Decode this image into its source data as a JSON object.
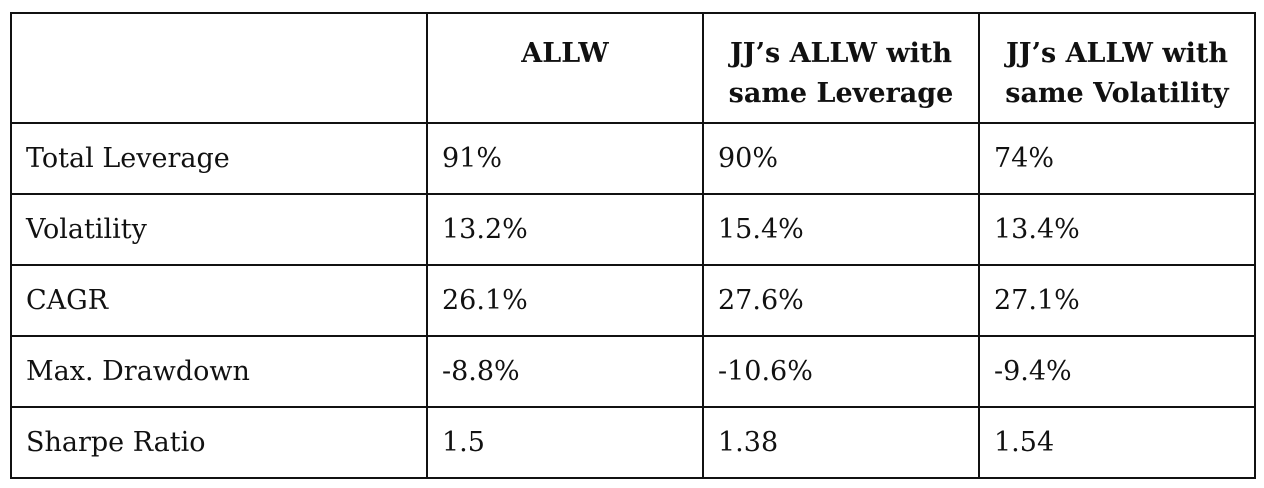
{
  "table": {
    "header": [
      "ALLW",
      "JJ’s ALLW with same Leverage",
      "JJ’s ALLW with same Volatility"
    ],
    "rows": [
      [
        "Total Leverage",
        "91%",
        "90%",
        "74%"
      ],
      [
        "Volatility",
        "13.2%",
        "15.4%",
        "13.4%"
      ],
      [
        "CAGR",
        "26.1%",
        "27.6%",
        "27.1%"
      ],
      [
        "Max. Drawdown",
        "-8.8%",
        "-10.6%",
        "-9.4%"
      ],
      [
        "Sharpe Ratio",
        "1.5",
        "1.38",
        "1.54"
      ]
    ]
  }
}
